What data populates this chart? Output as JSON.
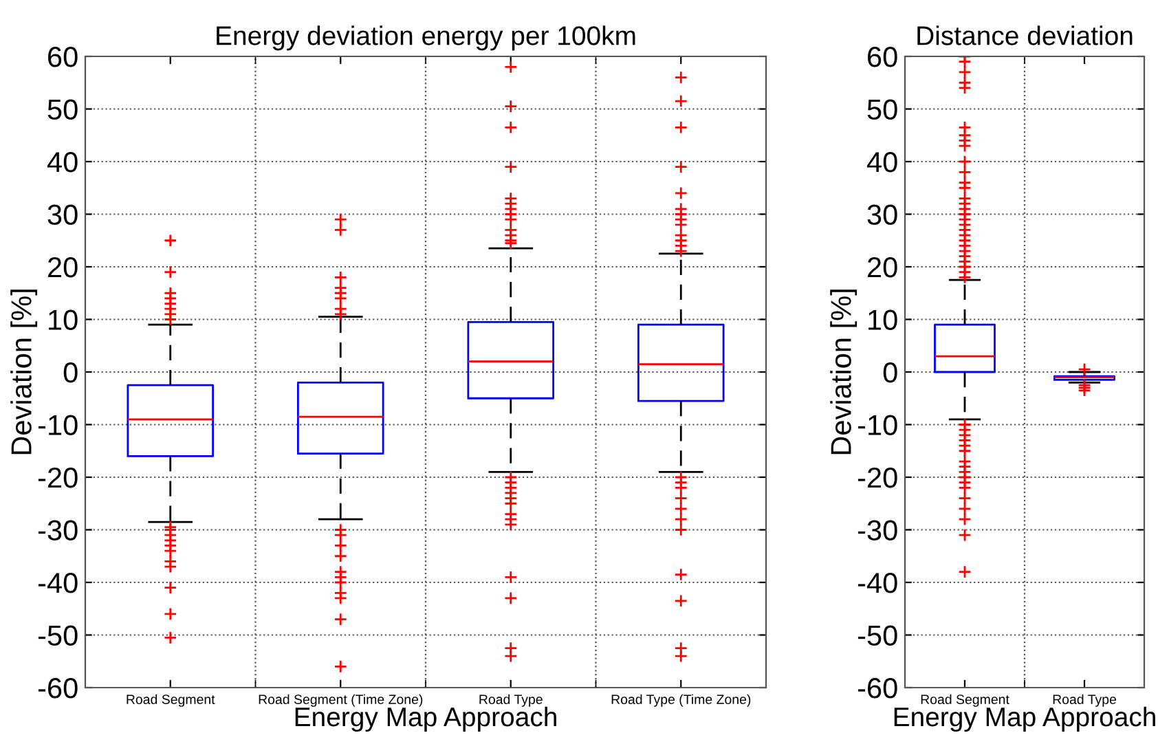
{
  "chart_data": [
    {
      "type": "box",
      "title": "Energy deviation energy per 100km",
      "xlabel": "Energy Map Approach",
      "ylabel": "Deviation [%]",
      "categories": [
        "Road Segment",
        "Road Segment (Time Zone)",
        "Road Type",
        "Road Type (Time Zone)"
      ],
      "series": [
        {
          "color": "#0000ff",
          "boxes": [
            {
              "low": -28.5,
              "q1": -16,
              "median": -9,
              "q3": -2.5,
              "high": 9,
              "outliers": [
                25,
                19,
                15,
                14,
                13,
                12,
                11,
                10,
                -29.5,
                -30,
                -31,
                -32,
                -33,
                -34,
                -36,
                -37,
                -41,
                -46,
                -50.5
              ]
            },
            {
              "low": -28,
              "q1": -15.5,
              "median": -8.5,
              "q3": -2,
              "high": 10.5,
              "outliers": [
                29,
                27,
                18,
                16,
                15,
                14,
                12,
                11,
                -30,
                -31,
                -33,
                -35,
                -38,
                -39,
                -40,
                -42,
                -43,
                -47,
                -56
              ]
            },
            {
              "low": -19,
              "q1": -5,
              "median": 2,
              "q3": 9.5,
              "high": 23.5,
              "outliers": [
                58,
                50.5,
                46.5,
                39,
                33,
                32,
                31,
                30,
                29,
                27,
                26,
                25,
                24.5,
                -20,
                -21,
                -22,
                -23,
                -24,
                -25,
                -27,
                -28,
                -29,
                -39,
                -43,
                -52.5,
                -54
              ]
            },
            {
              "low": -19,
              "q1": -5.5,
              "median": 1.5,
              "q3": 9,
              "high": 22.5,
              "outliers": [
                56,
                51.5,
                46.5,
                39,
                34,
                31,
                30,
                29,
                28,
                26,
                25,
                24,
                23,
                -20,
                -21,
                -22,
                -24,
                -26,
                -28,
                -30,
                -38.5,
                -43.5,
                -52.5,
                -54
              ]
            }
          ]
        }
      ],
      "ylim": [
        -60,
        60
      ],
      "yticks": [
        -60,
        -50,
        -40,
        -30,
        -20,
        -10,
        0,
        10,
        20,
        30,
        40,
        50,
        60
      ],
      "grid": true,
      "marker": "cross"
    },
    {
      "type": "box",
      "title": "Distance deviation",
      "xlabel": "Energy Map Approach",
      "ylabel": "Deviation [%]",
      "categories": [
        "Road Segment",
        "Road Type"
      ],
      "series": [
        {
          "color": "#0000ff",
          "boxes": [
            {
              "low": -9,
              "q1": 0,
              "median": 3,
              "q3": 9,
              "high": 17.5,
              "outliers": [
                60,
                59,
                57,
                55,
                54,
                46.5,
                45,
                44,
                43,
                40,
                38,
                36,
                35,
                33,
                32,
                31,
                30,
                29,
                28,
                27,
                26,
                25,
                24,
                23,
                22,
                21,
                20,
                19,
                18,
                -10,
                -11,
                -12,
                -13,
                -14,
                -15,
                -17,
                -18,
                -19,
                -20,
                -21,
                -22,
                -24,
                -26,
                -28,
                -31,
                -38
              ]
            },
            {
              "low": -2,
              "q1": -1.5,
              "median": -1,
              "q3": -0.8,
              "high": 0,
              "outliers": [
                0.5,
                -2.5,
                -3,
                -3.5
              ]
            }
          ]
        }
      ],
      "ylim": [
        -60,
        60
      ],
      "yticks": [
        -60,
        -50,
        -40,
        -30,
        -20,
        -10,
        0,
        10,
        20,
        30,
        40,
        50,
        60
      ],
      "grid": true,
      "marker": "cross"
    }
  ]
}
